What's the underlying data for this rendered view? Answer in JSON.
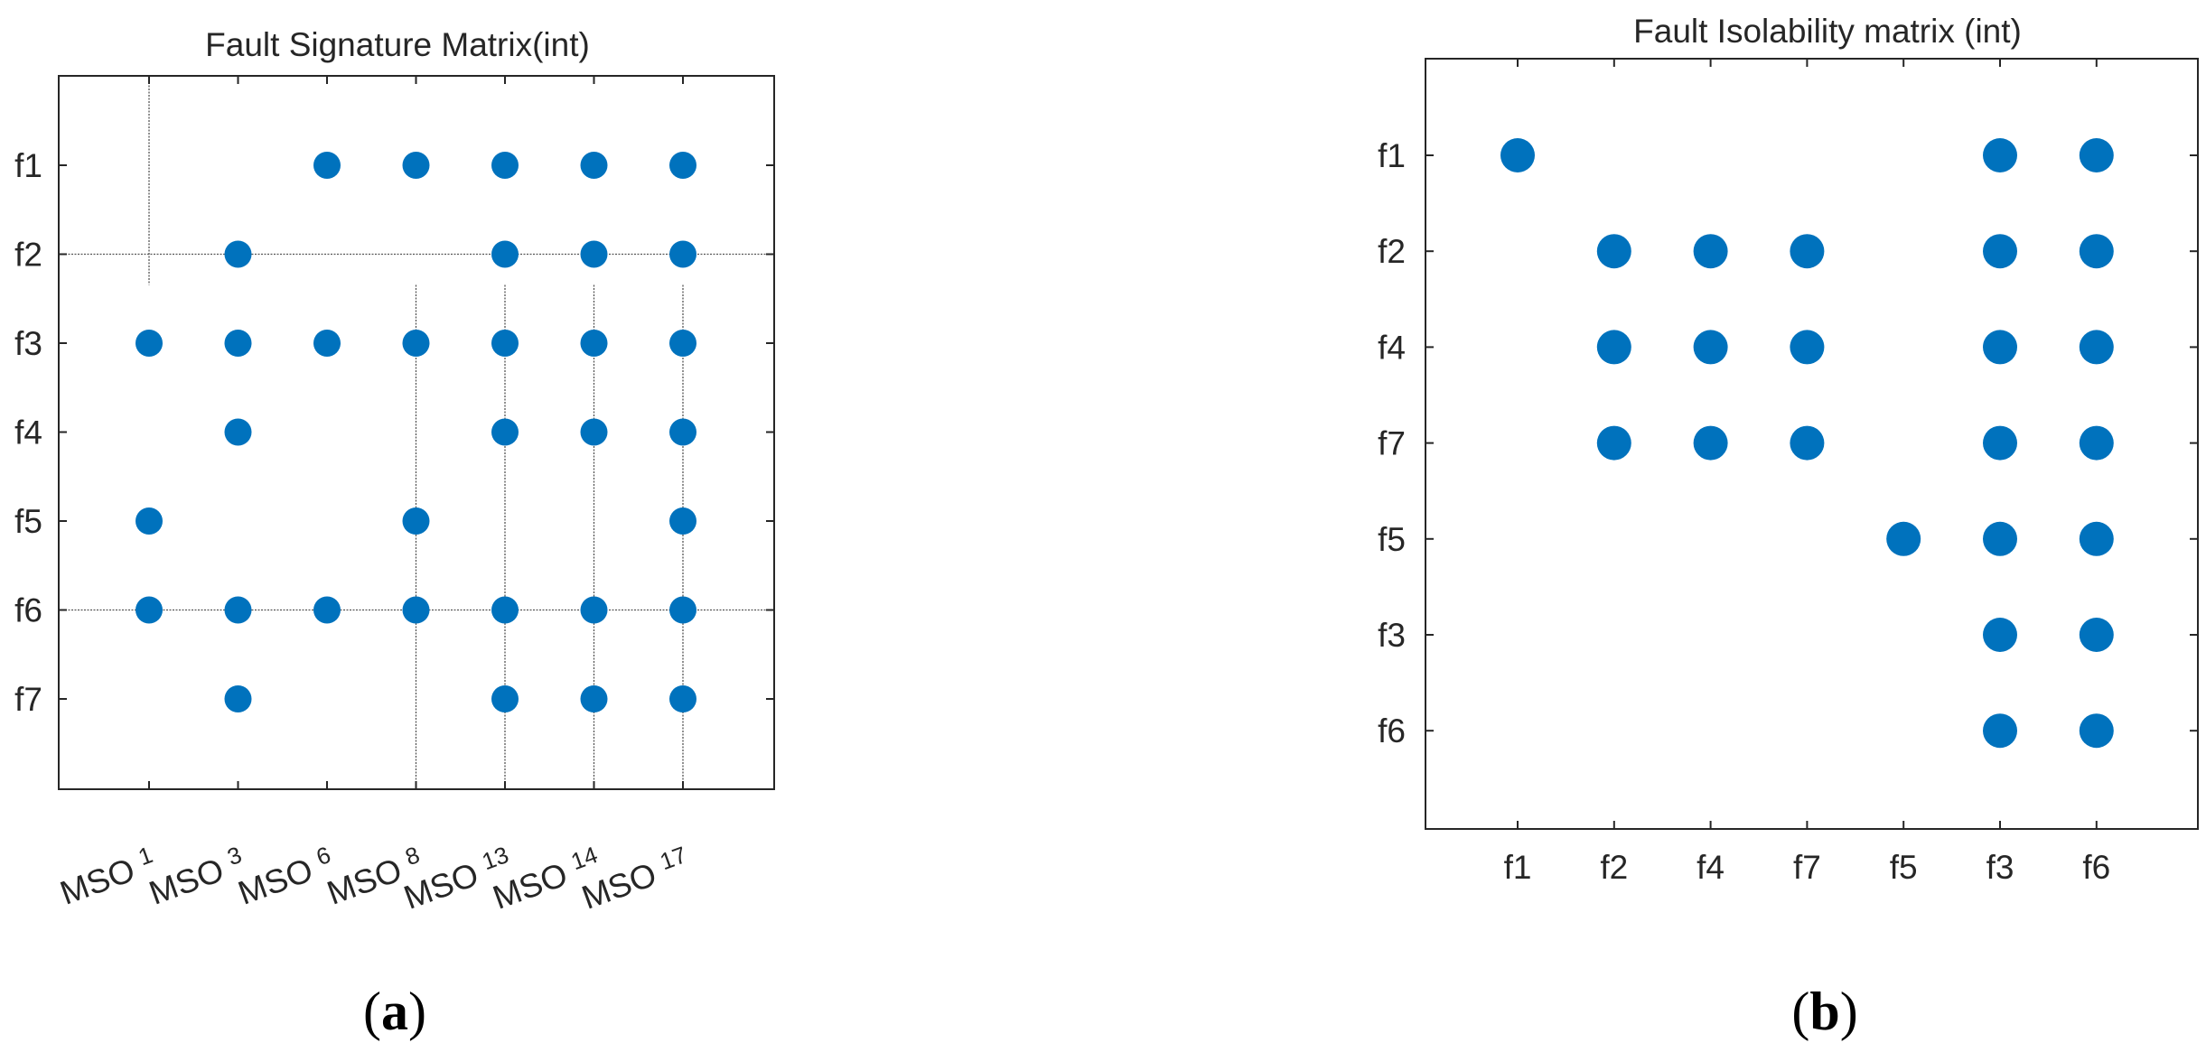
{
  "figure": {
    "captions": [
      "(a)",
      "(b)"
    ]
  },
  "chart_data": [
    {
      "type": "scatter",
      "title": "Fault Signature Matrix(int)",
      "xlabel": "",
      "ylabel": "",
      "x_ticks": [
        {
          "main": "MSO",
          "sub": "1"
        },
        {
          "main": "MSO",
          "sub": "3"
        },
        {
          "main": "MSO",
          "sub": "6"
        },
        {
          "main": "MSO",
          "sub": "8"
        },
        {
          "main": "MSO",
          "sub": "13"
        },
        {
          "main": "MSO",
          "sub": "14"
        },
        {
          "main": "MSO",
          "sub": "17"
        }
      ],
      "y_ticks": [
        "f1",
        "f2",
        "f3",
        "f4",
        "f5",
        "f6",
        "f7"
      ],
      "points": [
        [
          2,
          0
        ],
        [
          3,
          0
        ],
        [
          4,
          0
        ],
        [
          5,
          0
        ],
        [
          6,
          0
        ],
        [
          1,
          1
        ],
        [
          4,
          1
        ],
        [
          5,
          1
        ],
        [
          6,
          1
        ],
        [
          0,
          2
        ],
        [
          1,
          2
        ],
        [
          2,
          2
        ],
        [
          3,
          2
        ],
        [
          4,
          2
        ],
        [
          5,
          2
        ],
        [
          6,
          2
        ],
        [
          1,
          3
        ],
        [
          4,
          3
        ],
        [
          5,
          3
        ],
        [
          6,
          3
        ],
        [
          0,
          4
        ],
        [
          3,
          4
        ],
        [
          6,
          4
        ],
        [
          0,
          5
        ],
        [
          1,
          5
        ],
        [
          2,
          5
        ],
        [
          3,
          5
        ],
        [
          4,
          5
        ],
        [
          5,
          5
        ],
        [
          6,
          5
        ],
        [
          1,
          6
        ],
        [
          4,
          6
        ],
        [
          5,
          6
        ],
        [
          6,
          6
        ]
      ],
      "block_lines": {
        "horizontal": [
          1,
          5
        ],
        "vertical": [
          0,
          3,
          4,
          5,
          6
        ]
      },
      "marker_color": "#0072BD",
      "grid": false
    },
    {
      "type": "scatter",
      "title": "Fault Isolability matrix (int)",
      "xlabel": "",
      "ylabel": "",
      "x_ticks": [
        "f1",
        "f2",
        "f4",
        "f7",
        "f5",
        "f3",
        "f6"
      ],
      "y_ticks": [
        "f1",
        "f2",
        "f4",
        "f7",
        "f5",
        "f3",
        "f6"
      ],
      "points": [
        [
          0,
          0
        ],
        [
          5,
          0
        ],
        [
          6,
          0
        ],
        [
          1,
          1
        ],
        [
          2,
          1
        ],
        [
          3,
          1
        ],
        [
          5,
          1
        ],
        [
          6,
          1
        ],
        [
          1,
          2
        ],
        [
          2,
          2
        ],
        [
          3,
          2
        ],
        [
          5,
          2
        ],
        [
          6,
          2
        ],
        [
          1,
          3
        ],
        [
          2,
          3
        ],
        [
          3,
          3
        ],
        [
          5,
          3
        ],
        [
          6,
          3
        ],
        [
          4,
          4
        ],
        [
          5,
          4
        ],
        [
          6,
          4
        ],
        [
          5,
          5
        ],
        [
          6,
          5
        ],
        [
          5,
          6
        ],
        [
          6,
          6
        ]
      ],
      "marker_color": "#0072BD",
      "grid": false
    }
  ]
}
